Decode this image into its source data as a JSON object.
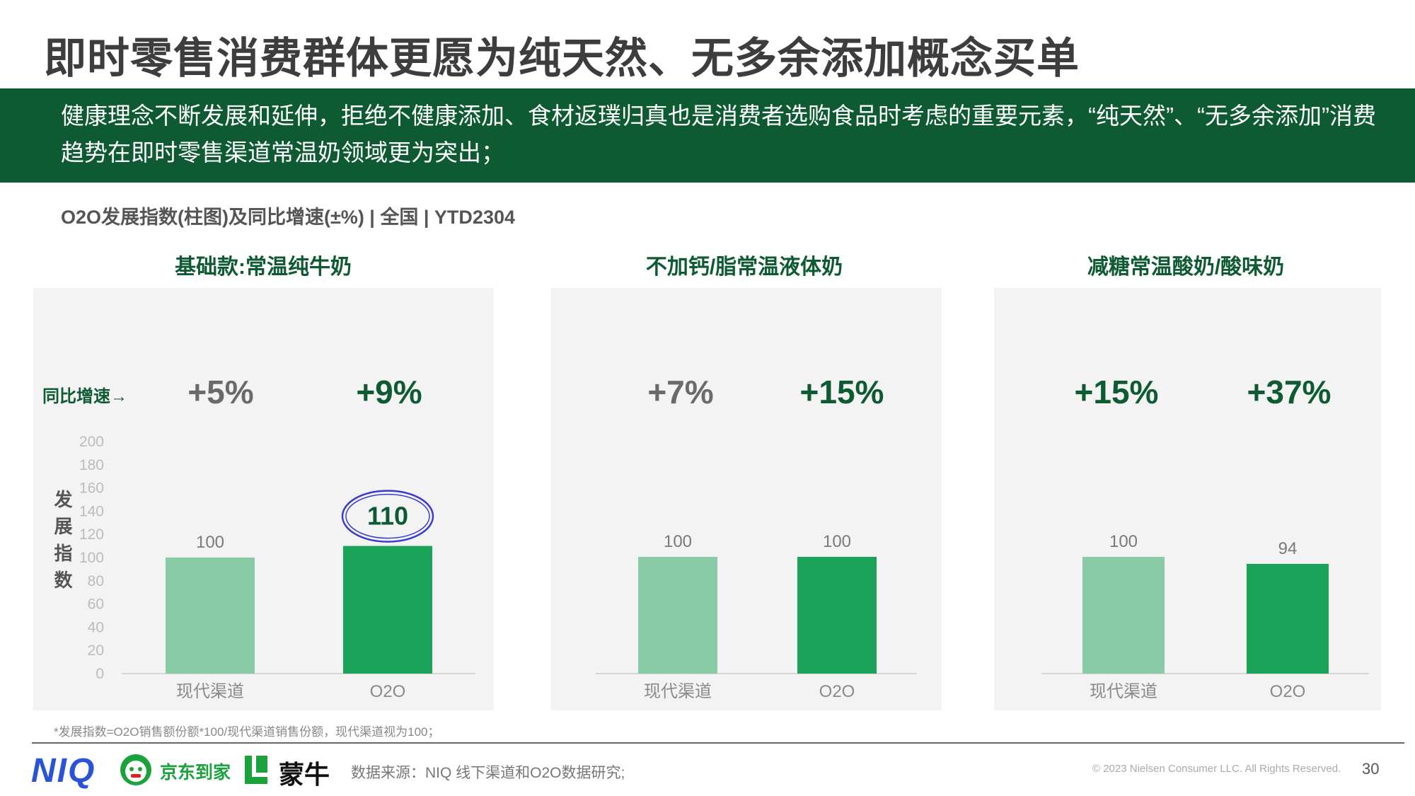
{
  "title": "即时零售消费群体更愿为纯天然、无多余添加概念买单",
  "banner": {
    "text": "健康理念不断发展和延伸，拒绝不健康添加、食材返璞归真也是消费者选购食品时考虑的重要元素，“纯天然”、“无多余添加”消费趋势在即时零售渠道常温奶领域更为突出；"
  },
  "chart_subtitle": "O2O发展指数(柱图)及同比增速(±%) | 全国 | YTD2304",
  "growth_label": "同比增速→",
  "y_axis_label": "发展指数",
  "colors": {
    "dark_green": "#0e5a32",
    "bar_modern": "#88cba6",
    "bar_o2o": "#1ba35a",
    "highlight_circle": "#3a3ad0",
    "growth_gray": "#6a6a6a"
  },
  "chart_data": [
    {
      "type": "bar",
      "title": "基础款:常温纯牛奶",
      "categories": [
        "现代渠道",
        "O2O"
      ],
      "values": [
        100,
        110
      ],
      "value_labels": [
        "100",
        "110"
      ],
      "growth": [
        "+5%",
        "+9%"
      ],
      "highlight_index": 1,
      "ylim": [
        0,
        200
      ],
      "y_ticks": [
        "0",
        "20",
        "40",
        "60",
        "80",
        "100",
        "120",
        "140",
        "160",
        "180",
        "200"
      ]
    },
    {
      "type": "bar",
      "title": "不加钙/脂常温液体奶",
      "categories": [
        "现代渠道",
        "O2O"
      ],
      "values": [
        100,
        100
      ],
      "value_labels": [
        "100",
        "100"
      ],
      "growth": [
        "+7%",
        "+15%"
      ],
      "ylim": [
        0,
        200
      ]
    },
    {
      "type": "bar",
      "title": "减糖常温酸奶/酸味奶",
      "categories": [
        "现代渠道",
        "O2O"
      ],
      "values": [
        100,
        94
      ],
      "value_labels": [
        "100",
        "94"
      ],
      "growth": [
        "+15%",
        "+37%"
      ],
      "ylim": [
        0,
        200
      ]
    }
  ],
  "footnote": "*发展指数=O2O销售额份额*100/现代渠道销售份额，现代渠道视为100；",
  "footer": {
    "logo_niq": "NIQ",
    "logo_jd": "京东到家",
    "logo_mengniu": "蒙牛",
    "source": "数据来源：NIQ 线下渠道和O2O数据研究;",
    "copyright": "© 2023 Nielsen Consumer LLC. All Rights Reserved.",
    "page_number": "30"
  }
}
